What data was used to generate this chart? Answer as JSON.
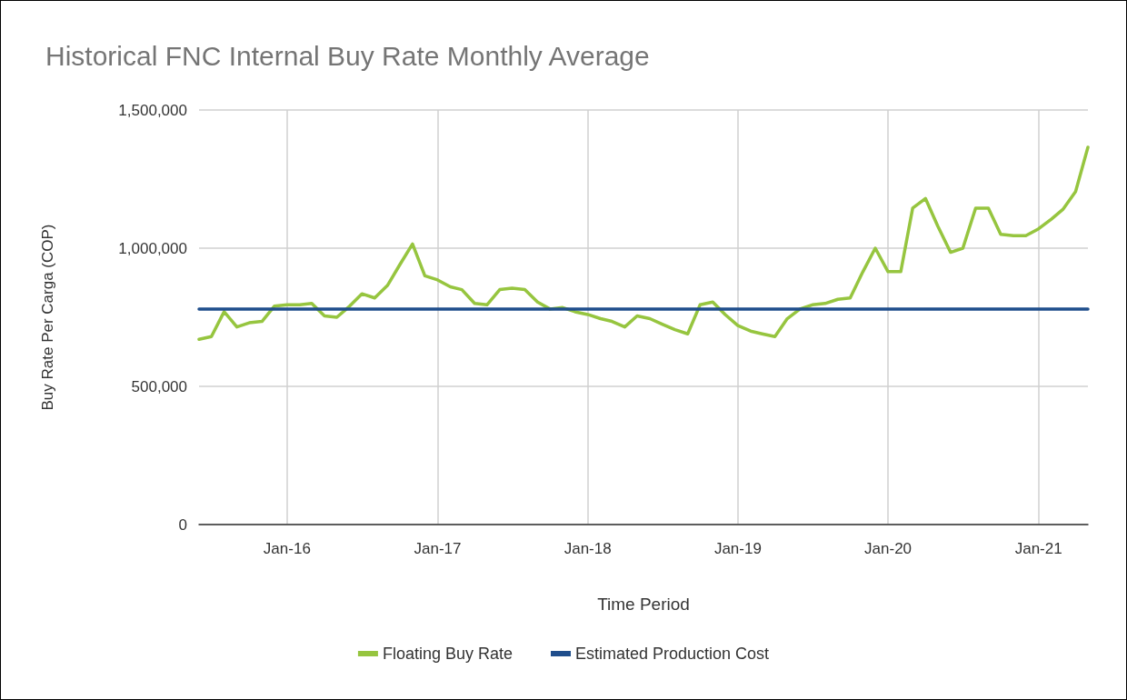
{
  "chart_data": {
    "type": "line",
    "title": "Historical FNC Internal Buy Rate Monthly Average",
    "xlabel": "Time Period",
    "ylabel": "Buy Rate Per Carga (COP)",
    "x": [
      "2015-06",
      "2015-07",
      "2015-08",
      "2015-09",
      "2015-10",
      "2015-11",
      "2015-12",
      "2016-01",
      "2016-02",
      "2016-03",
      "2016-04",
      "2016-05",
      "2016-06",
      "2016-07",
      "2016-08",
      "2016-09",
      "2016-10",
      "2016-11",
      "2016-12",
      "2017-01",
      "2017-02",
      "2017-03",
      "2017-04",
      "2017-05",
      "2017-06",
      "2017-07",
      "2017-08",
      "2017-09",
      "2017-10",
      "2017-11",
      "2017-12",
      "2018-01",
      "2018-02",
      "2018-03",
      "2018-04",
      "2018-05",
      "2018-06",
      "2018-07",
      "2018-08",
      "2018-09",
      "2018-10",
      "2018-11",
      "2018-12",
      "2019-01",
      "2019-02",
      "2019-03",
      "2019-04",
      "2019-05",
      "2019-06",
      "2019-07",
      "2019-08",
      "2019-09",
      "2019-10",
      "2019-11",
      "2019-12",
      "2020-01",
      "2020-02",
      "2020-03",
      "2020-04",
      "2020-05",
      "2020-06",
      "2020-07",
      "2020-08",
      "2020-09",
      "2020-10",
      "2020-11",
      "2020-12",
      "2021-01",
      "2021-02",
      "2021-03",
      "2021-04",
      "2021-05"
    ],
    "series": [
      {
        "name": "Floating Buy Rate",
        "color": "#96c53f",
        "values": [
          670000,
          680000,
          770000,
          715000,
          730000,
          735000,
          790000,
          795000,
          795000,
          800000,
          755000,
          750000,
          790000,
          835000,
          820000,
          865000,
          940000,
          1015000,
          900000,
          885000,
          860000,
          850000,
          800000,
          795000,
          850000,
          855000,
          850000,
          805000,
          780000,
          785000,
          770000,
          760000,
          745000,
          735000,
          715000,
          755000,
          745000,
          725000,
          705000,
          690000,
          795000,
          805000,
          760000,
          720000,
          700000,
          690000,
          680000,
          745000,
          780000,
          795000,
          800000,
          815000,
          820000,
          915000,
          1000000,
          915000,
          915000,
          1145000,
          1180000,
          1080000,
          985000,
          1000000,
          1145000,
          1145000,
          1050000,
          1045000,
          1045000,
          1070000,
          1105000,
          1140000,
          1205000,
          1365000
        ]
      },
      {
        "name": "Estimated Production Cost",
        "color": "#1f4e8c",
        "x": [
          "2015-06",
          "2021-05"
        ],
        "values": [
          780000,
          780000
        ]
      }
    ],
    "xlim": [
      "2015-06",
      "2021-05"
    ],
    "xticks": [
      {
        "value": "2016-01",
        "label": "Jan-16"
      },
      {
        "value": "2017-01",
        "label": "Jan-17"
      },
      {
        "value": "2018-01",
        "label": "Jan-18"
      },
      {
        "value": "2019-01",
        "label": "Jan-19"
      },
      {
        "value": "2020-01",
        "label": "Jan-20"
      },
      {
        "value": "2021-01",
        "label": "Jan-21"
      }
    ],
    "ylim": [
      0,
      1500000
    ],
    "yticks": [
      0,
      {
        "value": 500000,
        "label": "500,000"
      },
      {
        "value": 1000000,
        "label": "1,000,000"
      },
      {
        "value": 1500000,
        "label": "1,500,000"
      }
    ],
    "grid": true,
    "legend": "bottom"
  }
}
